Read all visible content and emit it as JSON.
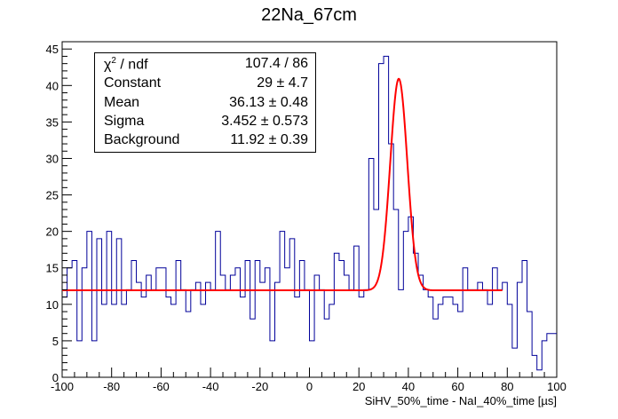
{
  "chart_data": {
    "type": "histogram",
    "title": "22Na_67cm",
    "xlabel": "SiHV_50%_time - NaI_40%_time [µs]",
    "ylabel": "",
    "xlim": [
      -100,
      100
    ],
    "ylim": [
      0,
      46
    ],
    "x_ticks": [
      -100,
      -80,
      -60,
      -40,
      -20,
      0,
      20,
      40,
      60,
      80,
      100
    ],
    "y_ticks": [
      0,
      5,
      10,
      15,
      20,
      25,
      30,
      35,
      40,
      45
    ],
    "grid": false,
    "bin_width": 2,
    "histogram_color": "#000099",
    "fit_color": "#ff0000",
    "series": [
      {
        "kind": "histogram",
        "bin_edges_start": -100,
        "counts": [
          11,
          15,
          16,
          5,
          15,
          20,
          5,
          19,
          10,
          20,
          10,
          19,
          10,
          12,
          16,
          13,
          11,
          14,
          12,
          15,
          15,
          11,
          10,
          16,
          12,
          9,
          12,
          13,
          10,
          13,
          12,
          20,
          14,
          12,
          14,
          15,
          11,
          16,
          8,
          16,
          13,
          15,
          5,
          13,
          20,
          15,
          19,
          11,
          16,
          12,
          5,
          14,
          12,
          8,
          10,
          17,
          16,
          14,
          12,
          18,
          11,
          12,
          30,
          23,
          43,
          44,
          32,
          23,
          12,
          20,
          22,
          17,
          14,
          12,
          11,
          8,
          10,
          11,
          11,
          10,
          9,
          15,
          12,
          12,
          13,
          12,
          10,
          15,
          12,
          13,
          10,
          4,
          13,
          16,
          9,
          3,
          1,
          5,
          6,
          6
        ]
      },
      {
        "kind": "fit",
        "name": "gaus + background",
        "function": "Constant*exp(-0.5*((x-Mean)/Sigma)^2) + Background",
        "x_range": [
          -100,
          78
        ],
        "parameters": {
          "Constant": 29,
          "Mean": 36.13,
          "Sigma": 3.452,
          "Background": 11.92
        }
      }
    ],
    "stats_box": {
      "position": "top-left",
      "rows": [
        {
          "label_base": "χ",
          "label_sup": "2",
          "label_rest": " / ndf",
          "value": "107.4 / 86"
        },
        {
          "label": "Constant",
          "value": "29 ± 4.7"
        },
        {
          "label": "Mean",
          "value": "36.13 ± 0.48"
        },
        {
          "label": "Sigma",
          "value": "3.452 ± 0.573"
        },
        {
          "label": "Background",
          "value": "11.92 ± 0.39"
        }
      ]
    }
  }
}
